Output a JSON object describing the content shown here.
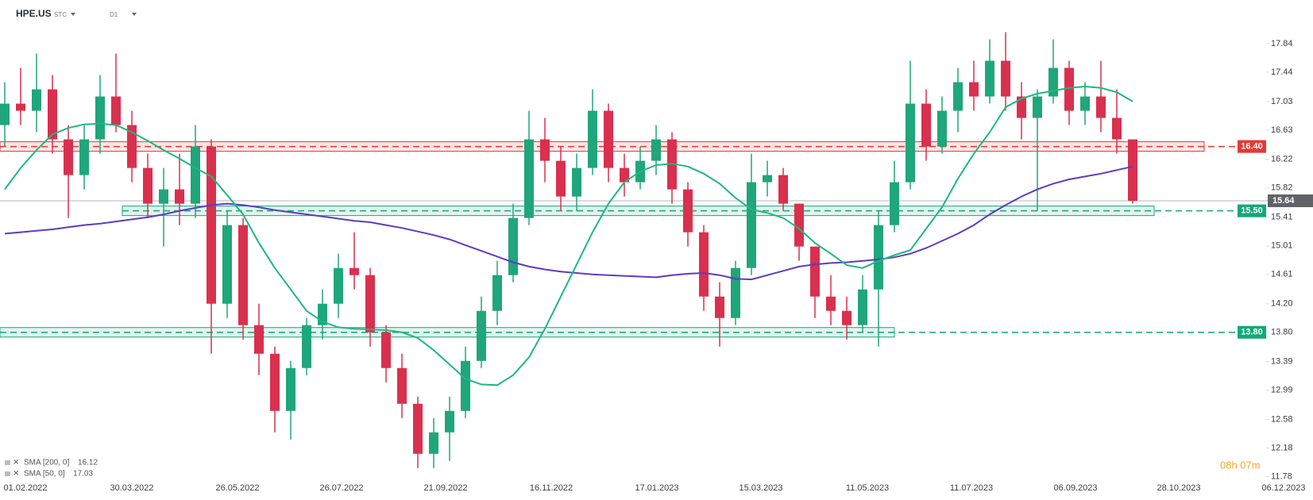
{
  "chart_data": {
    "type": "candlestick",
    "symbol": "HPE.US",
    "exchange": "STC",
    "interval": "D1",
    "timer": "08h 07m",
    "up_color": "#1fa67a",
    "down_color": "#d9304f",
    "open": [
      16.7,
      17.0,
      16.9,
      17.2,
      16.5,
      16.0,
      16.5,
      17.1,
      16.7,
      16.1,
      15.6,
      15.8,
      15.6,
      16.4,
      14.2,
      15.3,
      13.9,
      13.5,
      12.7,
      13.3,
      13.9,
      14.2,
      14.7,
      14.6,
      13.8,
      13.3,
      12.8,
      12.1,
      12.4,
      12.7,
      13.4,
      14.1,
      14.6,
      15.4,
      16.5,
      16.2,
      15.7,
      16.1,
      16.9,
      16.1,
      15.9,
      16.2,
      16.5,
      15.8,
      15.2,
      14.3,
      14.0,
      14.7,
      15.9,
      16.0,
      15.6,
      15.0,
      14.3,
      14.1,
      13.9,
      14.4,
      15.3,
      15.9,
      17.0,
      16.4,
      16.9,
      17.3,
      17.1,
      17.6,
      17.1,
      16.8,
      17.1,
      17.5,
      16.9,
      17.1,
      16.8,
      16.5
    ],
    "high": [
      17.3,
      17.5,
      17.7,
      17.4,
      16.7,
      16.7,
      17.4,
      17.7,
      16.9,
      16.3,
      16.1,
      16.3,
      16.7,
      16.5,
      15.5,
      15.4,
      14.2,
      13.6,
      13.4,
      14.0,
      14.4,
      14.9,
      15.2,
      14.7,
      13.9,
      13.5,
      12.9,
      12.6,
      12.9,
      13.6,
      14.3,
      14.8,
      15.6,
      16.9,
      16.8,
      16.4,
      16.3,
      17.2,
      17.0,
      16.3,
      16.4,
      16.7,
      16.6,
      15.9,
      15.3,
      14.5,
      14.8,
      16.3,
      16.2,
      16.1,
      15.6,
      15.0,
      14.6,
      14.3,
      14.6,
      15.5,
      16.2,
      17.6,
      17.2,
      17.1,
      17.5,
      17.6,
      17.9,
      18.0,
      17.3,
      17.2,
      17.9,
      17.6,
      17.3,
      17.6,
      17.2,
      16.5
    ],
    "low": [
      16.4,
      16.7,
      16.6,
      16.3,
      15.4,
      15.8,
      16.3,
      16.6,
      15.9,
      15.4,
      15.0,
      15.3,
      15.4,
      13.5,
      14.0,
      13.7,
      13.2,
      12.4,
      12.3,
      13.2,
      13.7,
      14.0,
      14.4,
      13.6,
      13.1,
      12.6,
      11.9,
      11.9,
      12.0,
      12.6,
      13.3,
      13.9,
      14.5,
      15.3,
      15.9,
      15.5,
      15.5,
      16.0,
      15.9,
      15.7,
      15.8,
      16.0,
      15.6,
      15.0,
      14.1,
      13.6,
      13.9,
      14.6,
      15.7,
      15.5,
      14.8,
      14.0,
      13.9,
      13.7,
      13.8,
      13.6,
      15.2,
      15.8,
      16.2,
      16.3,
      16.6,
      16.9,
      17.0,
      16.9,
      16.5,
      15.5,
      17.0,
      16.7,
      16.7,
      16.6,
      16.3,
      15.6
    ],
    "close": [
      17.0,
      16.9,
      17.2,
      16.5,
      16.0,
      16.5,
      17.1,
      16.7,
      16.1,
      15.6,
      15.8,
      15.6,
      16.4,
      14.2,
      15.3,
      13.9,
      13.5,
      12.7,
      13.3,
      13.9,
      14.2,
      14.7,
      14.6,
      13.8,
      13.3,
      12.8,
      12.1,
      12.4,
      12.7,
      13.4,
      14.1,
      14.6,
      15.4,
      16.5,
      16.2,
      15.7,
      16.1,
      16.9,
      16.1,
      15.9,
      16.2,
      16.5,
      15.8,
      15.2,
      14.3,
      14.0,
      14.7,
      15.9,
      16.0,
      15.6,
      15.0,
      14.3,
      14.1,
      13.9,
      14.4,
      15.3,
      15.9,
      17.0,
      16.4,
      16.9,
      17.3,
      17.1,
      17.6,
      17.1,
      16.8,
      17.1,
      17.5,
      16.9,
      17.1,
      16.8,
      16.5,
      15.64
    ],
    "series": [
      {
        "name": "SMA [200, 0]",
        "color": "#5b3cc4",
        "values": [
          15.18,
          15.2,
          15.22,
          15.24,
          15.27,
          15.3,
          15.32,
          15.35,
          15.38,
          15.41,
          15.45,
          15.5,
          15.54,
          15.58,
          15.6,
          15.58,
          15.55,
          15.51,
          15.48,
          15.45,
          15.42,
          15.39,
          15.36,
          15.34,
          15.3,
          15.26,
          15.21,
          15.16,
          15.1,
          15.02,
          14.94,
          14.86,
          14.78,
          14.72,
          14.68,
          14.65,
          14.63,
          14.61,
          14.6,
          14.59,
          14.58,
          14.57,
          14.6,
          14.62,
          14.63,
          14.6,
          14.55,
          14.54,
          14.6,
          14.66,
          14.72,
          14.75,
          14.77,
          14.78,
          14.8,
          14.82,
          14.85,
          14.9,
          14.98,
          15.08,
          15.18,
          15.3,
          15.45,
          15.58,
          15.7,
          15.8,
          15.88,
          15.94,
          15.98,
          16.02,
          16.07,
          16.12
        ]
      },
      {
        "name": "SMA [50, 0]",
        "color": "#1db87f",
        "values": [
          15.8,
          16.1,
          16.35,
          16.57,
          16.66,
          16.71,
          16.72,
          16.7,
          16.6,
          16.48,
          16.35,
          16.23,
          16.1,
          15.98,
          15.72,
          15.45,
          15.05,
          14.7,
          14.4,
          14.1,
          13.95,
          13.87,
          13.85,
          13.84,
          13.83,
          13.8,
          13.72,
          13.55,
          13.35,
          13.15,
          13.07,
          13.06,
          13.2,
          13.45,
          13.85,
          14.3,
          14.75,
          15.2,
          15.6,
          15.9,
          16.05,
          16.14,
          16.16,
          16.12,
          16.02,
          15.88,
          15.68,
          15.52,
          15.47,
          15.4,
          15.25,
          15.05,
          14.9,
          14.74,
          14.7,
          14.8,
          14.88,
          14.95,
          15.25,
          15.55,
          15.95,
          16.3,
          16.6,
          16.95,
          17.07,
          17.14,
          17.18,
          17.22,
          17.24,
          17.22,
          17.16,
          17.03
        ]
      }
    ],
    "levels": [
      {
        "value": 16.4,
        "label": "16.40",
        "color": "#e53935"
      },
      {
        "value": 15.5,
        "label": "15.50",
        "color": "#13a876"
      },
      {
        "value": 13.8,
        "label": "13.80",
        "color": "#13a876"
      }
    ],
    "last_price": 15.64,
    "last_price_color": "#5f6368",
    "ylim": [
      11.72,
      18.45
    ],
    "yticks": [
      17.84,
      17.44,
      17.03,
      16.63,
      16.22,
      15.82,
      15.41,
      15.01,
      14.61,
      {
        "value": 14.2,
        "label": "14.20"
      },
      {
        "value": 13.8,
        "label": "13.80"
      },
      13.39,
      12.99,
      12.58,
      12.18,
      11.78
    ],
    "xlim": [
      -0.3,
      82.35
    ],
    "xticks": [
      {
        "value": 1.3,
        "label": "01.02.2022"
      },
      {
        "value": 8,
        "label": "30.03.2022"
      },
      {
        "value": 14.65,
        "label": "26.05.2022"
      },
      {
        "value": 21.2,
        "label": "26.07.2022"
      },
      {
        "value": 27.75,
        "label": "21.09.2022"
      },
      {
        "value": 34.4,
        "label": "16.11.2022"
      },
      {
        "value": 41.05,
        "label": "17.01.2023"
      },
      {
        "value": 47.6,
        "label": "15.03.2023"
      },
      {
        "value": 54.3,
        "label": "11.05.2023"
      },
      {
        "value": 60.85,
        "label": "11.07.2023"
      },
      {
        "value": 67.4,
        "label": "06.09.2023"
      },
      {
        "value": 73.9,
        "label": "28.10.2023"
      },
      {
        "value": 80.5,
        "label": "06.12.2023"
      }
    ]
  }
}
